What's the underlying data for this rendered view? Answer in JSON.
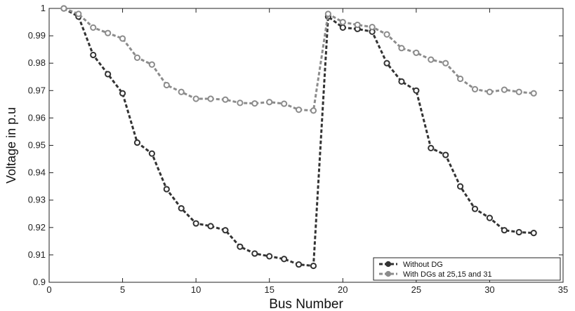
{
  "chart_data": {
    "type": "line",
    "title": "",
    "xlabel": "Bus Number",
    "ylabel": "Voltage in p.u",
    "xlim": [
      0,
      35
    ],
    "ylim": [
      0.9,
      1.0
    ],
    "xticks": [
      "0",
      "5",
      "10",
      "15",
      "20",
      "25",
      "30",
      "35"
    ],
    "yticks": [
      "0.9",
      "0.91",
      "0.92",
      "0.93",
      "0.94",
      "0.95",
      "0.96",
      "0.97",
      "0.98",
      "0.99",
      "1"
    ],
    "grid": false,
    "legend_position": "bottom-right",
    "x": [
      1,
      2,
      3,
      4,
      5,
      6,
      7,
      8,
      9,
      10,
      11,
      12,
      13,
      14,
      15,
      16,
      17,
      18,
      19,
      20,
      21,
      22,
      23,
      24,
      25,
      26,
      27,
      28,
      29,
      30,
      31,
      32,
      33
    ],
    "series": [
      {
        "name": "Without DG",
        "color": "#333333",
        "values": [
          1.0,
          0.997,
          0.983,
          0.976,
          0.969,
          0.951,
          0.947,
          0.934,
          0.927,
          0.9215,
          0.9205,
          0.919,
          0.913,
          0.9105,
          0.9095,
          0.9085,
          0.9065,
          0.906,
          0.997,
          0.993,
          0.9925,
          0.9915,
          0.98,
          0.9733,
          0.97,
          0.949,
          0.9465,
          0.935,
          0.9268,
          0.9235,
          0.919,
          0.9183,
          0.918
        ]
      },
      {
        "name": "With DGs at 25,15 and 31",
        "color": "#8c8c8c",
        "values": [
          1.0,
          0.998,
          0.993,
          0.991,
          0.989,
          0.982,
          0.9795,
          0.972,
          0.9695,
          0.967,
          0.967,
          0.9667,
          0.9655,
          0.9653,
          0.9658,
          0.9652,
          0.963,
          0.9627,
          0.998,
          0.995,
          0.994,
          0.9932,
          0.9905,
          0.9855,
          0.9838,
          0.9813,
          0.98,
          0.9743,
          0.9705,
          0.9695,
          0.9703,
          0.9695,
          0.969
        ]
      }
    ]
  }
}
